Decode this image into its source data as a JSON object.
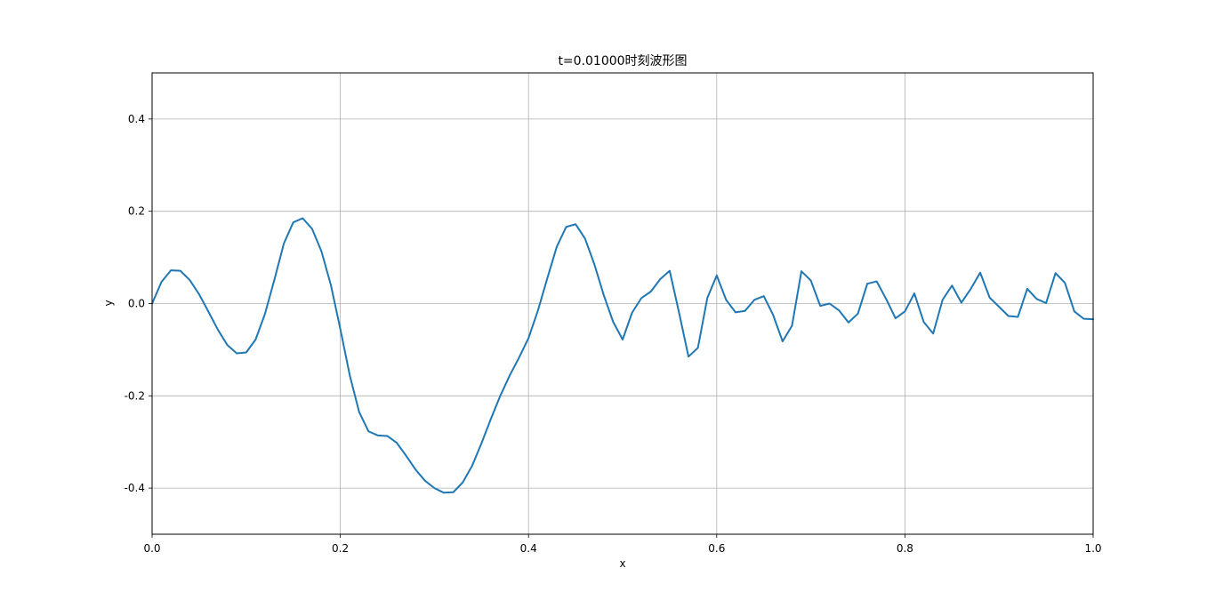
{
  "chart_data": {
    "type": "line",
    "title": "t=0.01000时刻波形图",
    "xlabel": "x",
    "ylabel": "y",
    "xlim": [
      0.0,
      1.0
    ],
    "ylim": [
      -0.5,
      0.5
    ],
    "grid": true,
    "x_ticks": [
      "0.0",
      "0.2",
      "0.4",
      "0.6",
      "0.8",
      "1.0"
    ],
    "y_ticks": [
      "-0.4",
      "-0.2",
      "0.0",
      "0.2",
      "0.4"
    ],
    "line_color": "#1f77b4",
    "series": [
      {
        "x": [
          0.0,
          0.01,
          0.02,
          0.03,
          0.04,
          0.05,
          0.06,
          0.07,
          0.08,
          0.09,
          0.1,
          0.11,
          0.12,
          0.13,
          0.14,
          0.15,
          0.16,
          0.17,
          0.18,
          0.19,
          0.2,
          0.21,
          0.22,
          0.23,
          0.24,
          0.25,
          0.26,
          0.27,
          0.28,
          0.29,
          0.3,
          0.31,
          0.32,
          0.33,
          0.34,
          0.35,
          0.36,
          0.37,
          0.38,
          0.39,
          0.4,
          0.41,
          0.42,
          0.43,
          0.44,
          0.45,
          0.46,
          0.47,
          0.48,
          0.49,
          0.5,
          0.51,
          0.52,
          0.53,
          0.54,
          0.55,
          0.56,
          0.57,
          0.58,
          0.59,
          0.6,
          0.61,
          0.62,
          0.63,
          0.64,
          0.65,
          0.66,
          0.67,
          0.68,
          0.69,
          0.7,
          0.71,
          0.72,
          0.73,
          0.74,
          0.75,
          0.76,
          0.77,
          0.78,
          0.79,
          0.8,
          0.81,
          0.82,
          0.83,
          0.84,
          0.85,
          0.86,
          0.87,
          0.88,
          0.89,
          0.9,
          0.91,
          0.92,
          0.93,
          0.94,
          0.95,
          0.96,
          0.97,
          0.98,
          0.99,
          1.0
        ],
        "y": [
          0.0,
          0.047,
          0.072,
          0.071,
          0.051,
          0.02,
          -0.018,
          -0.057,
          -0.09,
          -0.108,
          -0.106,
          -0.078,
          -0.022,
          0.052,
          0.13,
          0.176,
          0.185,
          0.162,
          0.113,
          0.04,
          -0.055,
          -0.155,
          -0.235,
          -0.277,
          -0.286,
          -0.287,
          -0.302,
          -0.33,
          -0.36,
          -0.384,
          -0.4,
          -0.41,
          -0.409,
          -0.388,
          -0.352,
          -0.303,
          -0.25,
          -0.2,
          -0.156,
          -0.117,
          -0.075,
          -0.015,
          0.055,
          0.123,
          0.166,
          0.172,
          0.141,
          0.085,
          0.018,
          -0.04,
          -0.078,
          -0.02,
          0.012,
          0.026,
          0.053,
          0.071,
          -0.02,
          -0.115,
          -0.096,
          0.012,
          0.061,
          0.008,
          -0.019,
          -0.016,
          0.008,
          0.016,
          -0.025,
          -0.082,
          -0.048,
          0.07,
          0.05,
          -0.005,
          0.0,
          -0.015,
          -0.041,
          -0.022,
          0.043,
          0.048,
          0.01,
          -0.032,
          -0.017,
          0.022,
          -0.04,
          -0.065,
          0.008,
          0.039,
          0.002,
          0.032,
          0.067,
          0.013,
          -0.007,
          -0.027,
          -0.029,
          0.032,
          0.01,
          0.001,
          0.066,
          0.045,
          -0.017,
          -0.033,
          -0.034
        ]
      }
    ]
  }
}
